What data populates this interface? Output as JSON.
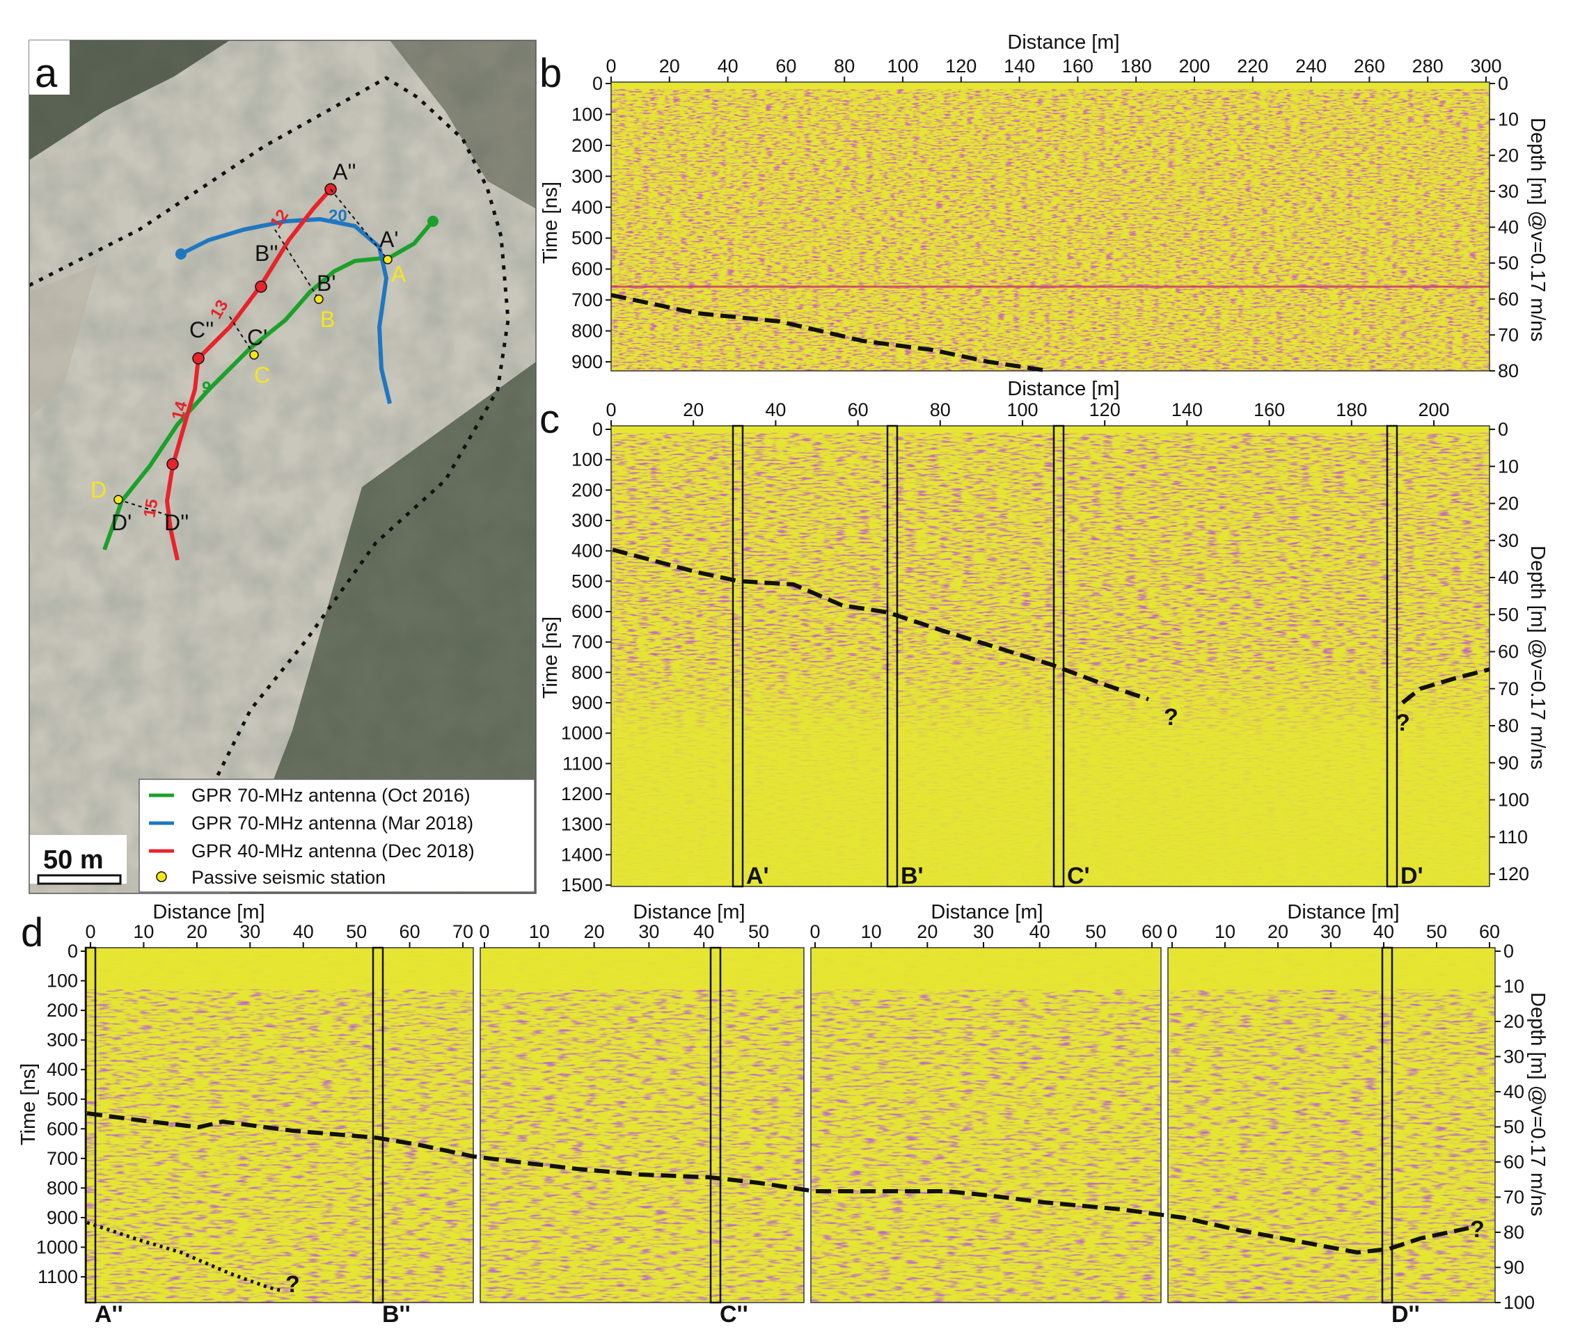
{
  "panel_labels": [
    "a",
    "b",
    "c",
    "d"
  ],
  "map": {
    "scalebar_label": "50 m",
    "legend": [
      {
        "label": "GPR 70-MHz antenna (Oct 2016)",
        "color": "#1aa12a"
      },
      {
        "label": "GPR 70-MHz antenna (Mar 2018)",
        "color": "#1f77c0"
      },
      {
        "label": "GPR 40-MHz antenna (Dec 2018)",
        "color": "#e8232a"
      },
      {
        "label": "Passive seismic station",
        "color": "#f5e61a"
      }
    ],
    "point_labels": [
      "A''",
      "A'",
      "A",
      "B''",
      "B'",
      "B",
      "C''",
      "C'",
      "C",
      "D",
      "D'",
      "D''"
    ],
    "line_numbers": [
      "12",
      "20",
      "13",
      "9",
      "14",
      "15"
    ]
  },
  "colors": {
    "bg_yellow": "#e6e632",
    "magenta": "#b0247f",
    "purple": "#4a2aa0",
    "green": "#1aa12a",
    "red": "#e8232a",
    "blue": "#1f77c0",
    "pick": "#111111"
  },
  "panel_b": {
    "xlabel": "Distance [m]",
    "ylabel": "Time [ns]",
    "y2label": "Depth [m] @v=0.17 m/ns",
    "xticks": [
      "0",
      "20",
      "40",
      "60",
      "80",
      "100",
      "120",
      "140",
      "160",
      "180",
      "200",
      "220",
      "240",
      "260",
      "280",
      "300"
    ],
    "yticks": [
      "0",
      "100",
      "200",
      "300",
      "400",
      "500",
      "600",
      "700",
      "800",
      "900"
    ],
    "y2ticks": [
      "0",
      "10",
      "20",
      "30",
      "40",
      "50",
      "60",
      "70",
      "80"
    ]
  },
  "panel_c": {
    "xlabel": "Distance [m]",
    "ylabel": "Time [ns]",
    "y2label": "Depth [m] @v=0.17 m/ns",
    "xticks": [
      "0",
      "20",
      "40",
      "60",
      "80",
      "100",
      "120",
      "140",
      "160",
      "180",
      "200"
    ],
    "yticks": [
      "0",
      "100",
      "200",
      "300",
      "400",
      "500",
      "600",
      "700",
      "800",
      "900",
      "1000",
      "1100",
      "1200",
      "1300",
      "1400",
      "1500"
    ],
    "y2ticks": [
      "0",
      "10",
      "20",
      "30",
      "40",
      "50",
      "60",
      "70",
      "80",
      "90",
      "100",
      "110",
      "120"
    ],
    "markers": [
      "A'",
      "B'",
      "C'",
      "D'"
    ],
    "uncertain": "?"
  },
  "panel_d": {
    "xlabel": "Distance [m]",
    "ylabel": "Time [ns]",
    "y2label": "Depth [m] @v=0.17 m/ns",
    "seg1_xticks": [
      "0",
      "10",
      "20",
      "30",
      "40",
      "50",
      "60",
      "70"
    ],
    "seg2_xticks": [
      "0",
      "10",
      "20",
      "30",
      "40",
      "50"
    ],
    "seg3_xticks": [
      "0",
      "10",
      "20",
      "30",
      "40",
      "50",
      "60"
    ],
    "seg4_xticks": [
      "0",
      "10",
      "20",
      "30",
      "40",
      "50",
      "60"
    ],
    "yticks": [
      "0",
      "100",
      "200",
      "300",
      "400",
      "500",
      "600",
      "700",
      "800",
      "900",
      "1000",
      "1100"
    ],
    "y2ticks": [
      "0",
      "10",
      "20",
      "30",
      "40",
      "50",
      "60",
      "70",
      "80",
      "90",
      "100"
    ],
    "markers": [
      "A''",
      "B''",
      "C''",
      "D''"
    ],
    "uncertain": "?"
  }
}
